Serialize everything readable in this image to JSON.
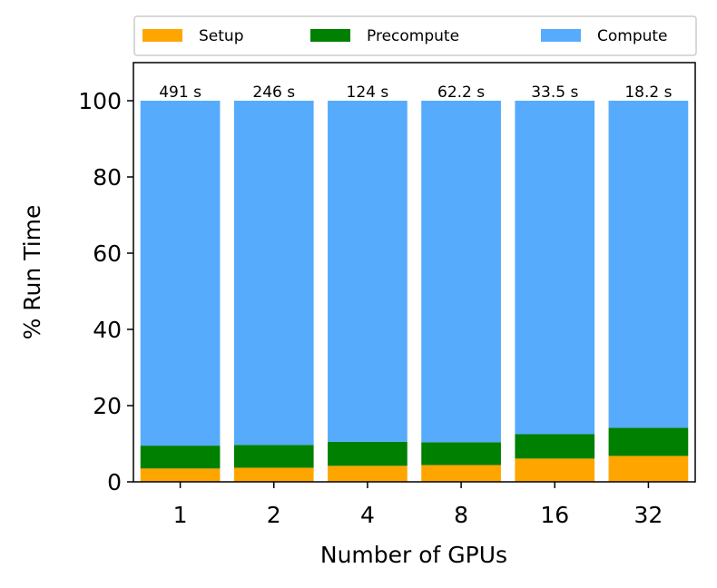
{
  "chart_data": {
    "type": "bar",
    "stacked": true,
    "xlabel": "Number of GPUs",
    "ylabel": "% Run Time",
    "ylim": [
      0,
      110
    ],
    "yticks": [
      0,
      20,
      40,
      60,
      80,
      100
    ],
    "categories": [
      "1",
      "2",
      "4",
      "8",
      "16",
      "32"
    ],
    "series": [
      {
        "name": "Setup",
        "color": "#FFA500",
        "values": [
          3.5,
          3.7,
          4.2,
          4.4,
          6.1,
          6.8
        ]
      },
      {
        "name": "Precompute",
        "color": "#008000",
        "values": [
          6.0,
          6.0,
          6.3,
          6.0,
          6.4,
          7.4
        ]
      },
      {
        "name": "Compute",
        "color": "#56ABFC",
        "values": [
          90.5,
          90.3,
          89.5,
          89.6,
          87.5,
          85.8
        ]
      }
    ],
    "bar_labels": [
      "491 s",
      "246 s",
      "124 s",
      "62.2 s",
      "33.5 s",
      "18.2 s"
    ],
    "legend_position": "top"
  }
}
